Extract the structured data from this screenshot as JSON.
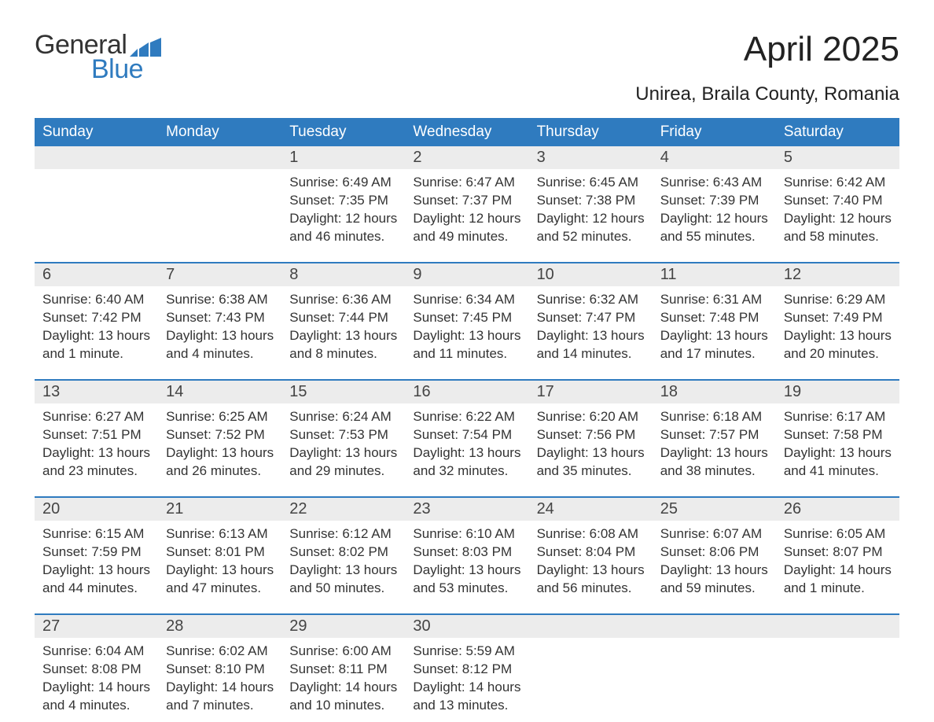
{
  "logo": {
    "text1": "General",
    "text2": "Blue",
    "color_general": "#333333",
    "color_blue": "#2f7bbf"
  },
  "title": "April 2025",
  "location": "Unirea, Braila County, Romania",
  "header_bg": "#2f7bbf",
  "header_fg": "#ffffff",
  "daynum_bg": "#ececec",
  "divider_color": "#2f7bbf",
  "days_of_week": [
    "Sunday",
    "Monday",
    "Tuesday",
    "Wednesday",
    "Thursday",
    "Friday",
    "Saturday"
  ],
  "weeks": [
    {
      "nums": [
        "",
        "",
        "1",
        "2",
        "3",
        "4",
        "5"
      ],
      "cells": [
        {},
        {},
        {
          "sunrise": "6:49 AM",
          "sunset": "7:35 PM",
          "daylight": "12 hours and 46 minutes."
        },
        {
          "sunrise": "6:47 AM",
          "sunset": "7:37 PM",
          "daylight": "12 hours and 49 minutes."
        },
        {
          "sunrise": "6:45 AM",
          "sunset": "7:38 PM",
          "daylight": "12 hours and 52 minutes."
        },
        {
          "sunrise": "6:43 AM",
          "sunset": "7:39 PM",
          "daylight": "12 hours and 55 minutes."
        },
        {
          "sunrise": "6:42 AM",
          "sunset": "7:40 PM",
          "daylight": "12 hours and 58 minutes."
        }
      ]
    },
    {
      "nums": [
        "6",
        "7",
        "8",
        "9",
        "10",
        "11",
        "12"
      ],
      "cells": [
        {
          "sunrise": "6:40 AM",
          "sunset": "7:42 PM",
          "daylight": "13 hours and 1 minute."
        },
        {
          "sunrise": "6:38 AM",
          "sunset": "7:43 PM",
          "daylight": "13 hours and 4 minutes."
        },
        {
          "sunrise": "6:36 AM",
          "sunset": "7:44 PM",
          "daylight": "13 hours and 8 minutes."
        },
        {
          "sunrise": "6:34 AM",
          "sunset": "7:45 PM",
          "daylight": "13 hours and 11 minutes."
        },
        {
          "sunrise": "6:32 AM",
          "sunset": "7:47 PM",
          "daylight": "13 hours and 14 minutes."
        },
        {
          "sunrise": "6:31 AM",
          "sunset": "7:48 PM",
          "daylight": "13 hours and 17 minutes."
        },
        {
          "sunrise": "6:29 AM",
          "sunset": "7:49 PM",
          "daylight": "13 hours and 20 minutes."
        }
      ]
    },
    {
      "nums": [
        "13",
        "14",
        "15",
        "16",
        "17",
        "18",
        "19"
      ],
      "cells": [
        {
          "sunrise": "6:27 AM",
          "sunset": "7:51 PM",
          "daylight": "13 hours and 23 minutes."
        },
        {
          "sunrise": "6:25 AM",
          "sunset": "7:52 PM",
          "daylight": "13 hours and 26 minutes."
        },
        {
          "sunrise": "6:24 AM",
          "sunset": "7:53 PM",
          "daylight": "13 hours and 29 minutes."
        },
        {
          "sunrise": "6:22 AM",
          "sunset": "7:54 PM",
          "daylight": "13 hours and 32 minutes."
        },
        {
          "sunrise": "6:20 AM",
          "sunset": "7:56 PM",
          "daylight": "13 hours and 35 minutes."
        },
        {
          "sunrise": "6:18 AM",
          "sunset": "7:57 PM",
          "daylight": "13 hours and 38 minutes."
        },
        {
          "sunrise": "6:17 AM",
          "sunset": "7:58 PM",
          "daylight": "13 hours and 41 minutes."
        }
      ]
    },
    {
      "nums": [
        "20",
        "21",
        "22",
        "23",
        "24",
        "25",
        "26"
      ],
      "cells": [
        {
          "sunrise": "6:15 AM",
          "sunset": "7:59 PM",
          "daylight": "13 hours and 44 minutes."
        },
        {
          "sunrise": "6:13 AM",
          "sunset": "8:01 PM",
          "daylight": "13 hours and 47 minutes."
        },
        {
          "sunrise": "6:12 AM",
          "sunset": "8:02 PM",
          "daylight": "13 hours and 50 minutes."
        },
        {
          "sunrise": "6:10 AM",
          "sunset": "8:03 PM",
          "daylight": "13 hours and 53 minutes."
        },
        {
          "sunrise": "6:08 AM",
          "sunset": "8:04 PM",
          "daylight": "13 hours and 56 minutes."
        },
        {
          "sunrise": "6:07 AM",
          "sunset": "8:06 PM",
          "daylight": "13 hours and 59 minutes."
        },
        {
          "sunrise": "6:05 AM",
          "sunset": "8:07 PM",
          "daylight": "14 hours and 1 minute."
        }
      ]
    },
    {
      "nums": [
        "27",
        "28",
        "29",
        "30",
        "",
        "",
        ""
      ],
      "cells": [
        {
          "sunrise": "6:04 AM",
          "sunset": "8:08 PM",
          "daylight": "14 hours and 4 minutes."
        },
        {
          "sunrise": "6:02 AM",
          "sunset": "8:10 PM",
          "daylight": "14 hours and 7 minutes."
        },
        {
          "sunrise": "6:00 AM",
          "sunset": "8:11 PM",
          "daylight": "14 hours and 10 minutes."
        },
        {
          "sunrise": "5:59 AM",
          "sunset": "8:12 PM",
          "daylight": "14 hours and 13 minutes."
        },
        {},
        {},
        {}
      ]
    }
  ],
  "labels": {
    "sunrise": "Sunrise: ",
    "sunset": "Sunset: ",
    "daylight": "Daylight: "
  }
}
